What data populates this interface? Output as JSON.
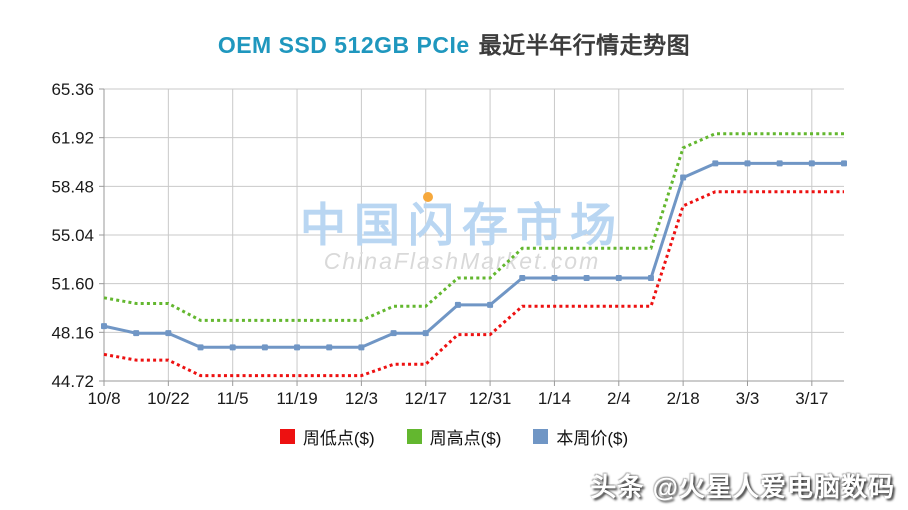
{
  "title": {
    "product": "OEM SSD 512GB PCIe",
    "suffix": "最近半年行情走势图"
  },
  "watermark": {
    "cn": "中国闪存市场",
    "en": "ChinaFlashMarket.com",
    "cn_color": "#b9d6f2",
    "en_color": "#d9d9d9",
    "dot_color": "#f6a83c"
  },
  "footer": {
    "credit": "头条 @火星人爱电脑数码"
  },
  "colors": {
    "title_accent": "#1f97be",
    "title_text": "#3c3c3c",
    "grid": "#c9c9c9",
    "axis": "#9a9a9a",
    "tick_label": "#1a1a1a"
  },
  "chart_data": {
    "type": "line",
    "title": "OEM SSD 512GB PCIe 最近半年行情走势图",
    "n_points": 24,
    "x_tick_indices": [
      0,
      2,
      4,
      6,
      8,
      10,
      12,
      14,
      16,
      18,
      20,
      22
    ],
    "x_tick_labels": [
      "10/8",
      "10/22",
      "11/5",
      "11/19",
      "12/3",
      "12/17",
      "12/31",
      "1/14",
      "2/4",
      "2/18",
      "3/3",
      "3/17"
    ],
    "y_tick_labels": [
      "65.36",
      "61.92",
      "58.48",
      "55.04",
      "51.60",
      "48.16",
      "44.72"
    ],
    "y_tick_values": [
      65.36,
      61.92,
      58.48,
      55.04,
      51.6,
      48.16,
      44.72
    ],
    "ylim": [
      44.72,
      65.36
    ],
    "grid": true,
    "legend_position": "bottom",
    "series": [
      {
        "name": "周低点($)",
        "color": "#ed1111",
        "style": "dotted",
        "marker": false,
        "values": [
          46.6,
          46.2,
          46.2,
          45.1,
          45.1,
          45.1,
          45.1,
          45.1,
          45.1,
          45.9,
          45.9,
          48.0,
          48.0,
          50.0,
          50.0,
          50.0,
          50.0,
          50.0,
          57.1,
          58.1,
          58.1,
          58.1,
          58.1,
          58.1
        ]
      },
      {
        "name": "周高点($)",
        "color": "#63b72f",
        "style": "dotted",
        "marker": false,
        "values": [
          50.6,
          50.2,
          50.2,
          49.0,
          49.0,
          49.0,
          49.0,
          49.0,
          49.0,
          50.0,
          50.0,
          52.0,
          52.0,
          54.1,
          54.1,
          54.1,
          54.1,
          54.1,
          61.2,
          62.2,
          62.2,
          62.2,
          62.2,
          62.2
        ]
      },
      {
        "name": "本周价($)",
        "color": "#7096c5",
        "style": "solid",
        "marker": true,
        "values": [
          48.6,
          48.1,
          48.1,
          47.1,
          47.1,
          47.1,
          47.1,
          47.1,
          47.1,
          48.1,
          48.1,
          50.1,
          50.1,
          52.0,
          52.0,
          52.0,
          52.0,
          52.0,
          59.1,
          60.1,
          60.1,
          60.1,
          60.1,
          60.1
        ]
      }
    ]
  }
}
